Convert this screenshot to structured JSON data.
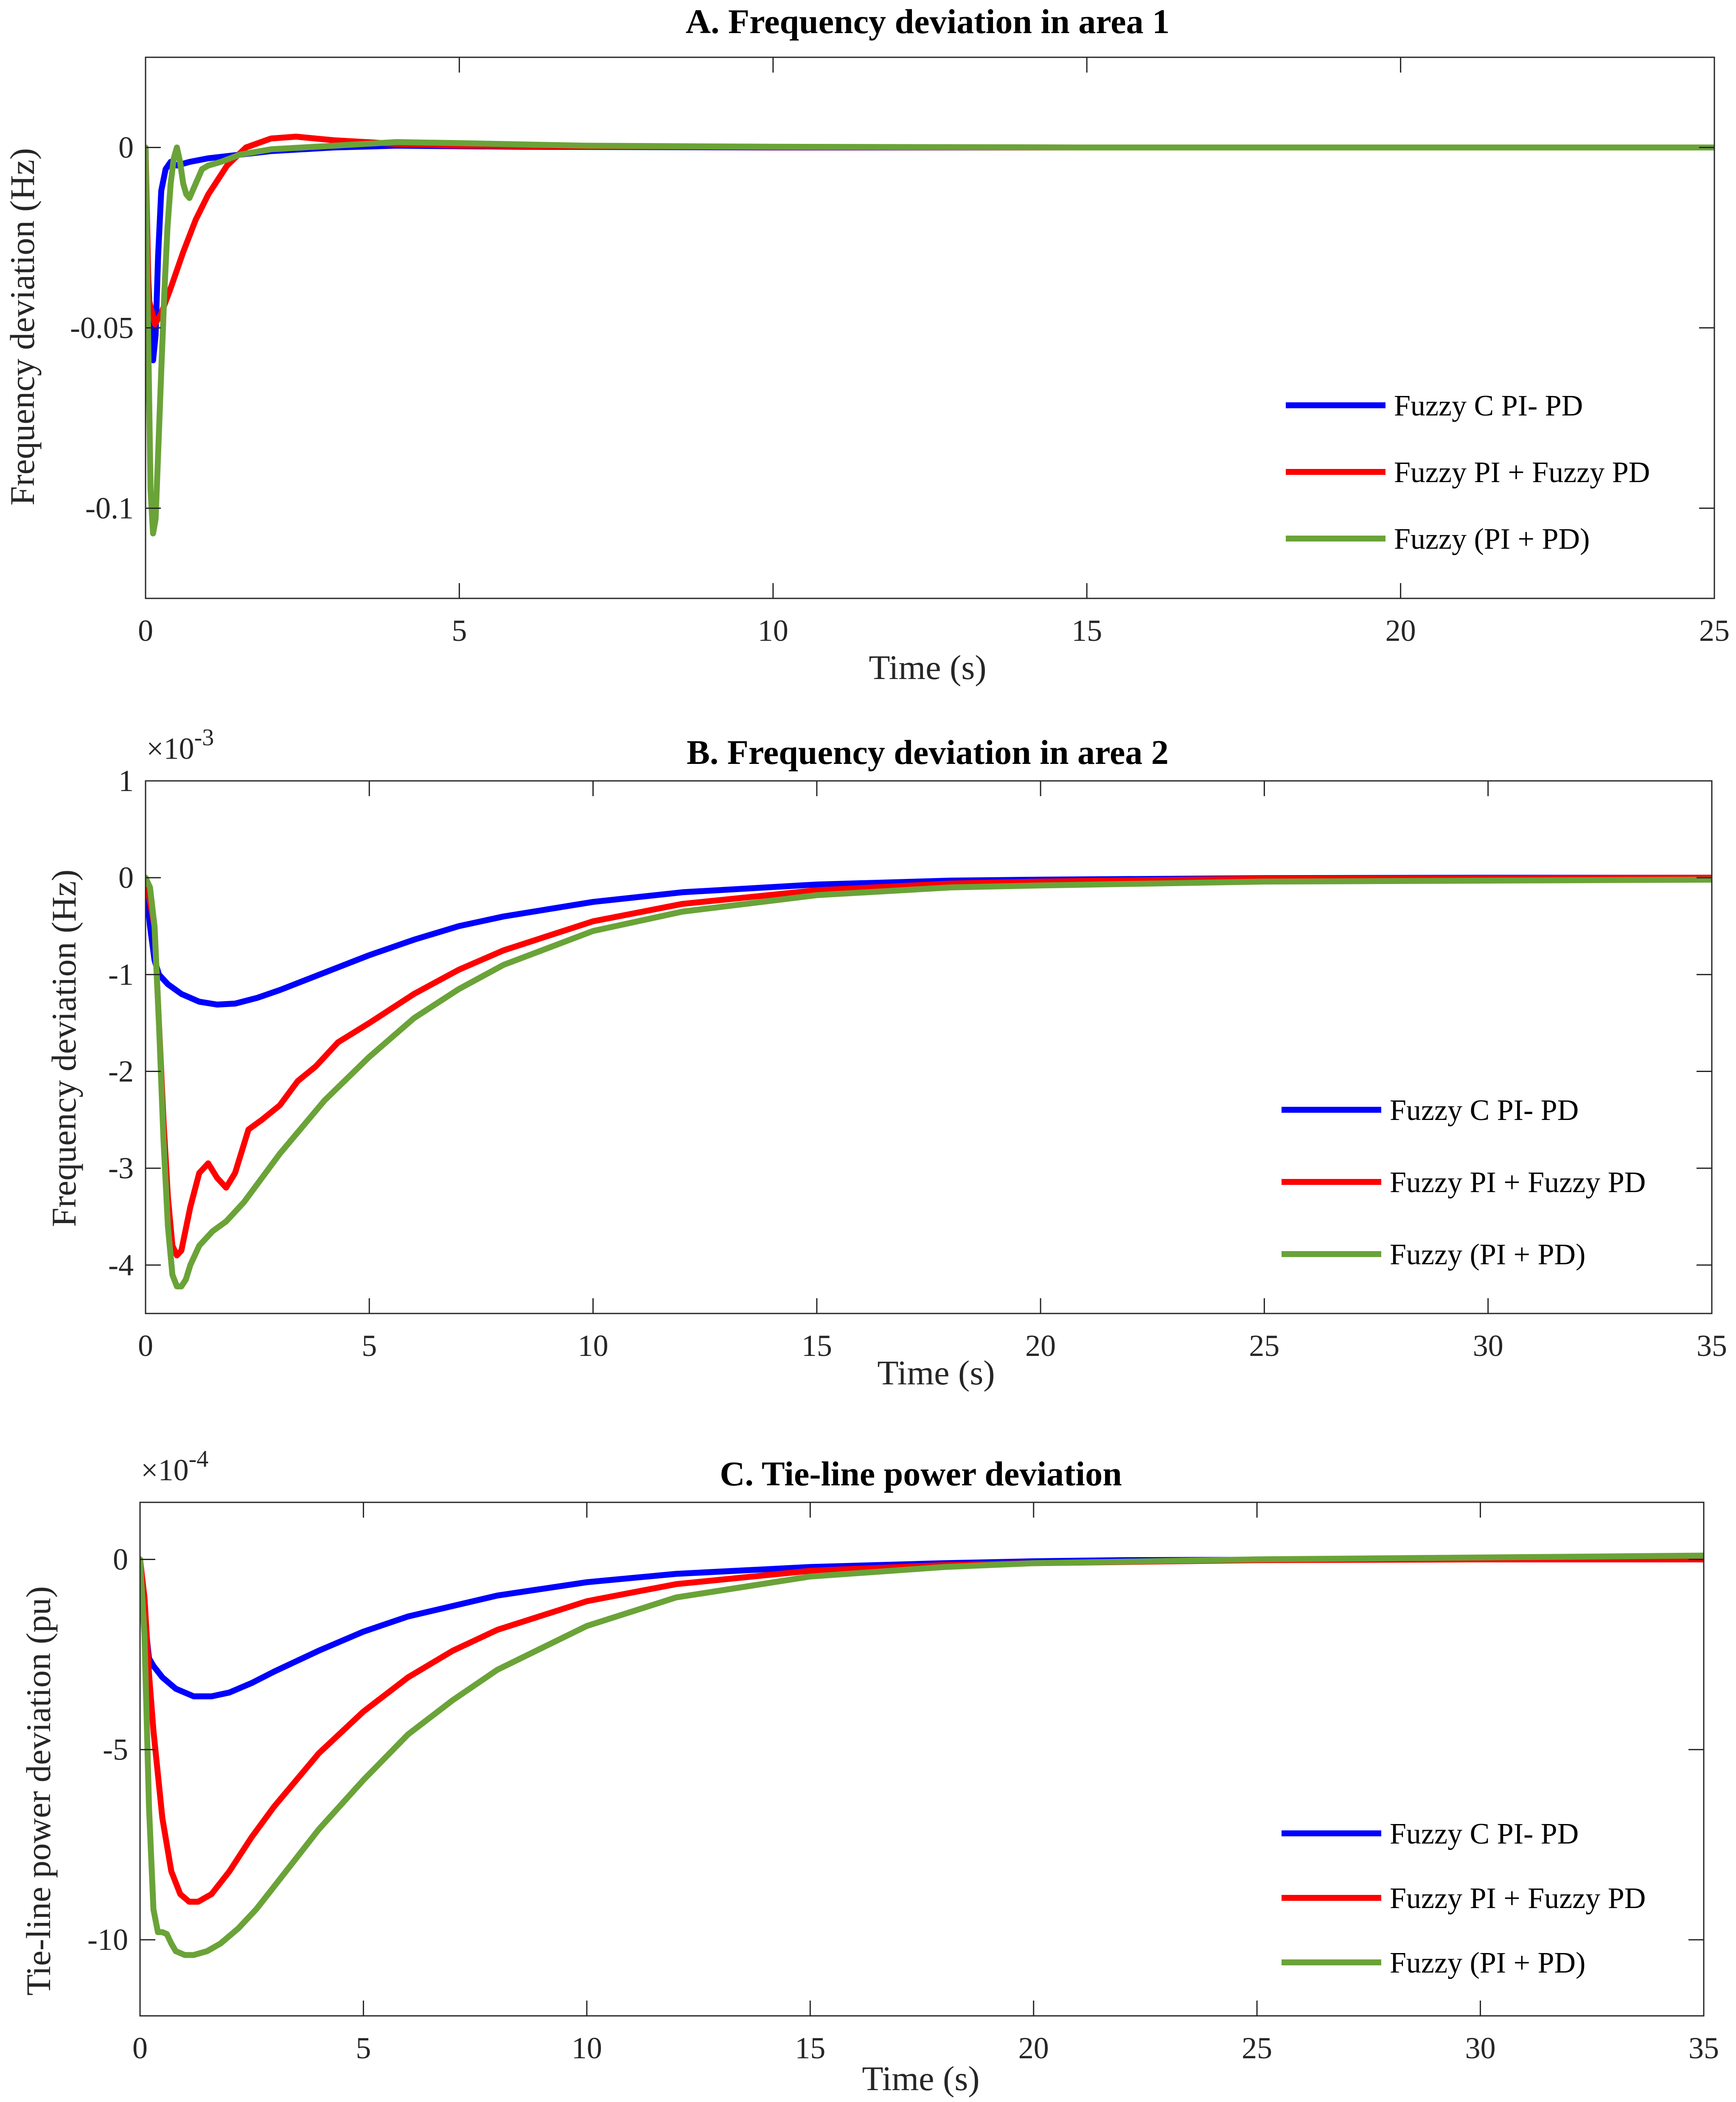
{
  "chart_data": [
    {
      "type": "line",
      "title": "A. Frequency deviation in area 1",
      "xlabel": "Time (s)",
      "ylabel": "Frequency deviation (Hz)",
      "xlim": [
        0,
        25
      ],
      "ylim": [
        -0.125,
        0.025
      ],
      "xticks": [
        0,
        5,
        10,
        15,
        20,
        25
      ],
      "xtick_labels": [
        "0",
        "5",
        "10",
        "15",
        "20",
        "25"
      ],
      "yticks": [
        -0.1,
        -0.05,
        0
      ],
      "ytick_labels": [
        "-0.1",
        "-0.05",
        "0"
      ],
      "exponent": "",
      "grid": false,
      "legend_position": "right",
      "series": [
        {
          "name": "Fuzzy C PI- PD",
          "color": "#0000ff",
          "x": [
            0,
            0.03,
            0.08,
            0.12,
            0.16,
            0.2,
            0.25,
            0.32,
            0.4,
            0.5,
            0.7,
            1.0,
            1.5,
            2.0,
            3.0,
            4.0,
            6.0,
            10.0,
            15.0,
            25.0
          ],
          "y": [
            0,
            -0.03,
            -0.052,
            -0.059,
            -0.052,
            -0.03,
            -0.012,
            -0.006,
            -0.004,
            -0.005,
            -0.004,
            -0.003,
            -0.002,
            -0.001,
            0.0,
            0.0005,
            0.0002,
            0,
            0,
            0
          ]
        },
        {
          "name": "Fuzzy PI + Fuzzy PD",
          "color": "#ff0000",
          "x": [
            0,
            0.05,
            0.15,
            0.25,
            0.4,
            0.6,
            0.8,
            1.0,
            1.3,
            1.6,
            2.0,
            2.4,
            3.0,
            4.0,
            5.0,
            7.0,
            10.0,
            15.0,
            25.0
          ],
          "y": [
            0,
            -0.042,
            -0.049,
            -0.046,
            -0.039,
            -0.029,
            -0.02,
            -0.013,
            -0.005,
            0.0,
            0.0025,
            0.003,
            0.002,
            0.001,
            0.0005,
            0.0003,
            0.0001,
            0,
            0
          ]
        },
        {
          "name": "Fuzzy (PI + PD)",
          "color": "#6aa338",
          "x": [
            0,
            0.04,
            0.08,
            0.12,
            0.16,
            0.2,
            0.25,
            0.3,
            0.35,
            0.4,
            0.45,
            0.5,
            0.55,
            0.6,
            0.65,
            0.7,
            0.75,
            0.8,
            0.85,
            0.9,
            1.0,
            1.2,
            1.5,
            2.0,
            3.0,
            4.0,
            5.0,
            7.0,
            10.0,
            15.0,
            25.0
          ],
          "y": [
            0,
            -0.05,
            -0.095,
            -0.107,
            -0.103,
            -0.085,
            -0.062,
            -0.04,
            -0.022,
            -0.01,
            -0.003,
            0.0,
            -0.004,
            -0.01,
            -0.013,
            -0.014,
            -0.012,
            -0.01,
            -0.008,
            -0.006,
            -0.005,
            -0.004,
            -0.002,
            -0.0005,
            0.0005,
            0.0015,
            0.0012,
            0.0005,
            0.0002,
            0,
            0
          ]
        }
      ]
    },
    {
      "type": "line",
      "title": "B. Frequency deviation in area 2",
      "xlabel": "Time (s)",
      "ylabel": "Frequency deviation (Hz)",
      "xlim": [
        0,
        35
      ],
      "ylim": [
        -4.5,
        1
      ],
      "xticks": [
        0,
        5,
        10,
        15,
        20,
        25,
        30,
        35
      ],
      "xtick_labels": [
        "0",
        "5",
        "10",
        "15",
        "20",
        "25",
        "30",
        "35"
      ],
      "yticks": [
        -4,
        -3,
        -2,
        -1,
        0,
        1
      ],
      "ytick_labels": [
        "-4",
        "-3",
        "-2",
        "-1",
        "0",
        "1"
      ],
      "exponent": "×10",
      "exponent_power": "-3",
      "grid": false,
      "legend_position": "right",
      "series": [
        {
          "name": "Fuzzy C PI- PD",
          "color": "#0000ff",
          "x": [
            0,
            0.1,
            0.2,
            0.3,
            0.5,
            0.8,
            1.2,
            1.6,
            2.0,
            2.5,
            3.0,
            4.0,
            5.0,
            6.0,
            7.0,
            8.0,
            10.0,
            12.0,
            15.0,
            18.0,
            20.0,
            25.0,
            30.0,
            35.0
          ],
          "y": [
            0,
            -0.5,
            -0.85,
            -1.0,
            -1.1,
            -1.2,
            -1.28,
            -1.31,
            -1.3,
            -1.24,
            -1.16,
            -0.98,
            -0.8,
            -0.64,
            -0.5,
            -0.4,
            -0.25,
            -0.15,
            -0.07,
            -0.03,
            -0.02,
            -0.005,
            0,
            0
          ]
        },
        {
          "name": "Fuzzy PI + Fuzzy PD",
          "color": "#ff0000",
          "x": [
            0,
            0.2,
            0.3,
            0.4,
            0.5,
            0.6,
            0.7,
            0.8,
            1.0,
            1.2,
            1.4,
            1.6,
            1.8,
            2.0,
            2.3,
            2.6,
            3.0,
            3.4,
            3.8,
            4.3,
            5.0,
            6.0,
            7.0,
            8.0,
            10.0,
            12.0,
            15.0,
            18.0,
            20.0,
            25.0,
            30.0,
            35.0
          ],
          "y": [
            0,
            -0.5,
            -1.5,
            -2.5,
            -3.3,
            -3.8,
            -3.9,
            -3.85,
            -3.4,
            -3.05,
            -2.95,
            -3.1,
            -3.2,
            -3.05,
            -2.6,
            -2.5,
            -2.35,
            -2.1,
            -1.95,
            -1.7,
            -1.5,
            -1.2,
            -0.95,
            -0.75,
            -0.45,
            -0.27,
            -0.13,
            -0.06,
            -0.04,
            -0.01,
            -0.005,
            0
          ]
        },
        {
          "name": "Fuzzy (PI + PD)",
          "color": "#6aa338",
          "x": [
            0,
            0.1,
            0.2,
            0.3,
            0.4,
            0.5,
            0.6,
            0.7,
            0.8,
            0.9,
            1.0,
            1.2,
            1.5,
            1.8,
            2.2,
            2.6,
            3.0,
            4.0,
            5.0,
            6.0,
            7.0,
            8.0,
            10.0,
            12.0,
            15.0,
            18.0,
            20.0,
            25.0,
            30.0,
            35.0
          ],
          "y": [
            0,
            -0.1,
            -0.5,
            -1.5,
            -2.7,
            -3.6,
            -4.1,
            -4.22,
            -4.22,
            -4.15,
            -4.0,
            -3.8,
            -3.65,
            -3.55,
            -3.35,
            -3.1,
            -2.85,
            -2.3,
            -1.85,
            -1.45,
            -1.15,
            -0.9,
            -0.55,
            -0.35,
            -0.18,
            -0.1,
            -0.08,
            -0.04,
            -0.03,
            -0.02
          ]
        }
      ]
    },
    {
      "type": "line",
      "title": "C. Tie-line power deviation",
      "xlabel": "Time (s)",
      "ylabel": "Tie-line power deviation (pu)",
      "xlim": [
        0,
        35
      ],
      "ylim": [
        -12,
        1.5
      ],
      "xticks": [
        0,
        5,
        10,
        15,
        20,
        25,
        30,
        35
      ],
      "xtick_labels": [
        "0",
        "5",
        "10",
        "15",
        "20",
        "25",
        "30",
        "35"
      ],
      "yticks": [
        -10,
        -5,
        0
      ],
      "ytick_labels": [
        "-10",
        "-5",
        "0"
      ],
      "exponent": "×10",
      "exponent_power": "-4",
      "grid": false,
      "legend_position": "right",
      "series": [
        {
          "name": "Fuzzy C PI- PD",
          "color": "#0000ff",
          "x": [
            0,
            0.1,
            0.2,
            0.3,
            0.5,
            0.8,
            1.2,
            1.6,
            2.0,
            2.5,
            3.0,
            4.0,
            5.0,
            6.0,
            8.0,
            10.0,
            12.0,
            15.0,
            18.0,
            20.0,
            22.0,
            25.0,
            30.0,
            35.0
          ],
          "y": [
            0,
            -1.5,
            -2.6,
            -2.8,
            -3.1,
            -3.4,
            -3.6,
            -3.6,
            -3.5,
            -3.25,
            -2.95,
            -2.4,
            -1.9,
            -1.5,
            -0.95,
            -0.6,
            -0.38,
            -0.2,
            -0.1,
            -0.05,
            -0.02,
            -0.01,
            0,
            0
          ]
        },
        {
          "name": "Fuzzy PI + Fuzzy PD",
          "color": "#ff0000",
          "x": [
            0,
            0.1,
            0.2,
            0.3,
            0.5,
            0.7,
            0.9,
            1.1,
            1.3,
            1.6,
            2.0,
            2.5,
            3.0,
            4.0,
            5.0,
            6.0,
            7.0,
            8.0,
            10.0,
            12.0,
            15.0,
            18.0,
            20.0,
            25.0,
            30.0,
            35.0
          ],
          "y": [
            0,
            -1.0,
            -3.0,
            -4.5,
            -6.8,
            -8.2,
            -8.8,
            -9.0,
            -9.0,
            -8.8,
            -8.2,
            -7.3,
            -6.5,
            -5.1,
            -4.0,
            -3.1,
            -2.4,
            -1.85,
            -1.1,
            -0.65,
            -0.3,
            -0.15,
            -0.1,
            -0.02,
            0,
            0
          ]
        },
        {
          "name": "Fuzzy (PI + PD)",
          "color": "#6aa338",
          "x": [
            0,
            0.1,
            0.2,
            0.3,
            0.4,
            0.5,
            0.6,
            0.7,
            0.8,
            0.9,
            1.0,
            1.2,
            1.5,
            1.8,
            2.2,
            2.6,
            3.0,
            4.0,
            5.0,
            6.0,
            7.0,
            8.0,
            10.0,
            12.0,
            15.0,
            18.0,
            20.0,
            25.0,
            30.0,
            35.0
          ],
          "y": [
            0,
            -2.0,
            -6.5,
            -9.2,
            -9.8,
            -9.8,
            -9.85,
            -10.1,
            -10.3,
            -10.35,
            -10.4,
            -10.4,
            -10.3,
            -10.1,
            -9.7,
            -9.2,
            -8.6,
            -7.1,
            -5.8,
            -4.6,
            -3.7,
            -2.9,
            -1.75,
            -1.0,
            -0.45,
            -0.2,
            -0.1,
            0.0,
            0.05,
            0.1
          ]
        }
      ]
    }
  ]
}
